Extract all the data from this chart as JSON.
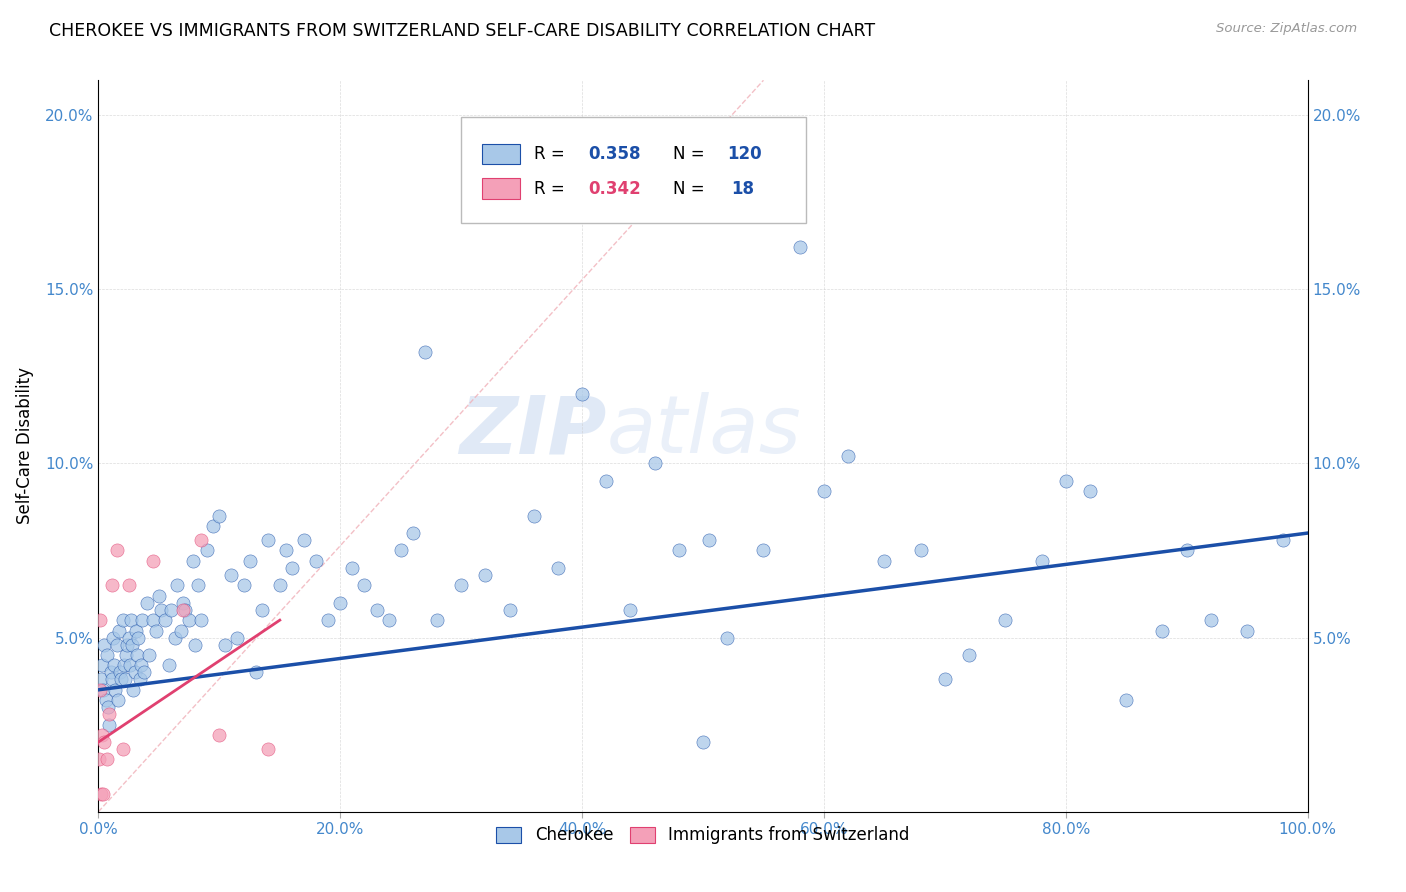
{
  "title": "CHEROKEE VS IMMIGRANTS FROM SWITZERLAND SELF-CARE DISABILITY CORRELATION CHART",
  "source": "Source: ZipAtlas.com",
  "ylabel": "Self-Care Disability",
  "xlim": [
    0,
    100
  ],
  "ylim": [
    0,
    21
  ],
  "xticks": [
    0,
    20,
    40,
    60,
    80,
    100
  ],
  "xticklabels": [
    "0.0%",
    "20.0%",
    "40.0%",
    "60.0%",
    "80.0%",
    "100.0%"
  ],
  "yticks": [
    0,
    5,
    10,
    15,
    20
  ],
  "yticklabels": [
    "",
    "5.0%",
    "10.0%",
    "15.0%",
    "20.0%"
  ],
  "color_cherokee": "#A8C8E8",
  "color_swiss": "#F4A0B8",
  "color_trend_cherokee": "#1B4FA8",
  "color_trend_swiss": "#E04070",
  "color_diagonal": "#F0B0B8",
  "color_axis_ticks": "#4488CC",
  "watermark_zip": "ZIP",
  "watermark_atlas": "atlas",
  "cherokee_x": [
    0.2,
    0.3,
    0.4,
    0.5,
    0.6,
    0.7,
    0.8,
    0.9,
    1.0,
    1.1,
    1.2,
    1.3,
    1.4,
    1.5,
    1.6,
    1.7,
    1.8,
    1.9,
    2.0,
    2.1,
    2.2,
    2.3,
    2.4,
    2.5,
    2.6,
    2.7,
    2.8,
    2.9,
    3.0,
    3.1,
    3.2,
    3.3,
    3.4,
    3.5,
    3.6,
    3.8,
    4.0,
    4.2,
    4.5,
    4.8,
    5.0,
    5.2,
    5.5,
    5.8,
    6.0,
    6.3,
    6.5,
    6.8,
    7.0,
    7.2,
    7.5,
    7.8,
    8.0,
    8.2,
    8.5,
    9.0,
    9.5,
    10.0,
    10.5,
    11.0,
    11.5,
    12.0,
    12.5,
    13.0,
    13.5,
    14.0,
    15.0,
    15.5,
    16.0,
    17.0,
    18.0,
    19.0,
    20.0,
    21.0,
    22.0,
    23.0,
    24.0,
    25.0,
    26.0,
    27.0,
    28.0,
    30.0,
    32.0,
    34.0,
    36.0,
    38.0,
    40.0,
    42.0,
    44.0,
    46.0,
    48.0,
    50.0,
    50.5,
    52.0,
    55.0,
    58.0,
    60.0,
    62.0,
    65.0,
    68.0,
    70.0,
    72.0,
    75.0,
    78.0,
    80.0,
    82.0,
    85.0,
    88.0,
    90.0,
    92.0,
    95.0,
    98.0
  ],
  "cherokee_y": [
    3.8,
    4.2,
    3.5,
    4.8,
    3.2,
    4.5,
    3.0,
    2.5,
    4.0,
    3.8,
    5.0,
    4.2,
    3.5,
    4.8,
    3.2,
    5.2,
    4.0,
    3.8,
    5.5,
    4.2,
    3.8,
    4.5,
    4.8,
    5.0,
    4.2,
    5.5,
    4.8,
    3.5,
    4.0,
    5.2,
    4.5,
    5.0,
    3.8,
    4.2,
    5.5,
    4.0,
    6.0,
    4.5,
    5.5,
    5.2,
    6.2,
    5.8,
    5.5,
    4.2,
    5.8,
    5.0,
    6.5,
    5.2,
    6.0,
    5.8,
    5.5,
    7.2,
    4.8,
    6.5,
    5.5,
    7.5,
    8.2,
    8.5,
    4.8,
    6.8,
    5.0,
    6.5,
    7.2,
    4.0,
    5.8,
    7.8,
    6.5,
    7.5,
    7.0,
    7.8,
    7.2,
    5.5,
    6.0,
    7.0,
    6.5,
    5.8,
    5.5,
    7.5,
    8.0,
    13.2,
    5.5,
    6.5,
    6.8,
    5.8,
    8.5,
    7.0,
    12.0,
    9.5,
    5.8,
    10.0,
    7.5,
    2.0,
    7.8,
    5.0,
    7.5,
    16.2,
    9.2,
    10.2,
    7.2,
    7.5,
    3.8,
    4.5,
    5.5,
    7.2,
    9.5,
    9.2,
    3.2,
    5.2,
    7.5,
    5.5,
    5.2,
    7.8
  ],
  "swiss_x": [
    0.05,
    0.1,
    0.15,
    0.2,
    0.3,
    0.4,
    0.5,
    0.7,
    0.9,
    1.1,
    1.5,
    2.0,
    2.5,
    4.5,
    7.0,
    8.5,
    10.0,
    14.0
  ],
  "swiss_y": [
    1.5,
    5.5,
    3.5,
    0.5,
    2.2,
    0.5,
    2.0,
    1.5,
    2.8,
    6.5,
    7.5,
    1.8,
    6.5,
    7.2,
    5.8,
    7.8,
    2.2,
    1.8
  ],
  "trend_cherokee_x0": 0,
  "trend_cherokee_x1": 100,
  "trend_cherokee_y0": 3.5,
  "trend_cherokee_y1": 8.0,
  "trend_swiss_x0": 0,
  "trend_swiss_x1": 15,
  "trend_swiss_y0": 2.0,
  "trend_swiss_y1": 5.5
}
